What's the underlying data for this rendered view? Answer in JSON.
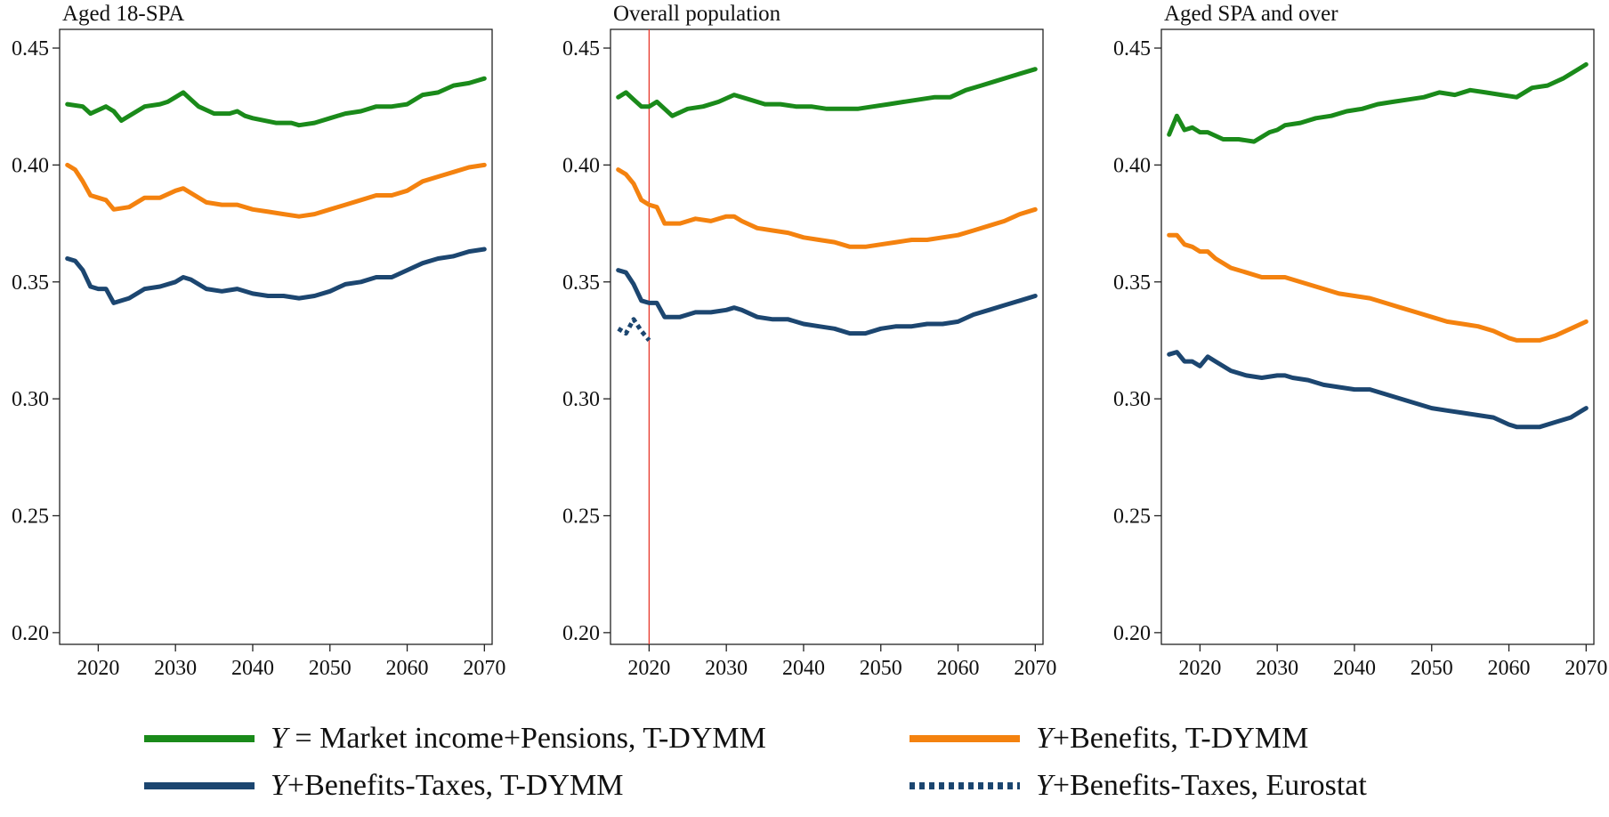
{
  "chart_data": [
    {
      "type": "line",
      "title": "Aged 18-SPA",
      "xlabel": "",
      "ylabel": "",
      "xlim": [
        2015,
        2071
      ],
      "ylim": [
        0.195,
        0.458
      ],
      "x_ticks": [
        "2020",
        "2030",
        "2040",
        "2050",
        "2060",
        "2070"
      ],
      "y_ticks": [
        "0.20",
        "0.25",
        "0.30",
        "0.35",
        "0.40",
        "0.45"
      ],
      "grid": false,
      "series": [
        {
          "name": "Y = Market income+Pensions, T-DYMM",
          "color": "#1a8a1a",
          "x": [
            2016,
            2018,
            2019,
            2021,
            2022,
            2023,
            2025,
            2026,
            2028,
            2029,
            2030,
            2031,
            2032,
            2033,
            2035,
            2037,
            2038,
            2039,
            2040,
            2043,
            2045,
            2046,
            2048,
            2050,
            2052,
            2054,
            2056,
            2058,
            2060,
            2062,
            2064,
            2066,
            2068,
            2070
          ],
          "values": [
            0.426,
            0.425,
            0.422,
            0.425,
            0.423,
            0.419,
            0.423,
            0.425,
            0.426,
            0.427,
            0.429,
            0.431,
            0.428,
            0.425,
            0.422,
            0.422,
            0.423,
            0.421,
            0.42,
            0.418,
            0.418,
            0.417,
            0.418,
            0.42,
            0.422,
            0.423,
            0.425,
            0.425,
            0.426,
            0.43,
            0.431,
            0.434,
            0.435,
            0.437
          ]
        },
        {
          "name": "Y+Benefits, T-DYMM",
          "color": "#f4820f",
          "x": [
            2016,
            2017,
            2018,
            2019,
            2020,
            2021,
            2022,
            2024,
            2026,
            2028,
            2030,
            2031,
            2032,
            2034,
            2036,
            2038,
            2040,
            2042,
            2044,
            2046,
            2048,
            2050,
            2052,
            2054,
            2056,
            2058,
            2060,
            2062,
            2064,
            2066,
            2068,
            2070
          ],
          "values": [
            0.4,
            0.398,
            0.393,
            0.387,
            0.386,
            0.385,
            0.381,
            0.382,
            0.386,
            0.386,
            0.389,
            0.39,
            0.388,
            0.384,
            0.383,
            0.383,
            0.381,
            0.38,
            0.379,
            0.378,
            0.379,
            0.381,
            0.383,
            0.385,
            0.387,
            0.387,
            0.389,
            0.393,
            0.395,
            0.397,
            0.399,
            0.4
          ]
        },
        {
          "name": "Y+Benefits-Taxes, T-DYMM",
          "color": "#1c4670",
          "x": [
            2016,
            2017,
            2018,
            2019,
            2020,
            2021,
            2022,
            2024,
            2026,
            2028,
            2030,
            2031,
            2032,
            2034,
            2036,
            2038,
            2040,
            2042,
            2044,
            2046,
            2048,
            2050,
            2052,
            2054,
            2056,
            2058,
            2060,
            2062,
            2064,
            2066,
            2068,
            2070
          ],
          "values": [
            0.36,
            0.359,
            0.355,
            0.348,
            0.347,
            0.347,
            0.341,
            0.343,
            0.347,
            0.348,
            0.35,
            0.352,
            0.351,
            0.347,
            0.346,
            0.347,
            0.345,
            0.344,
            0.344,
            0.343,
            0.344,
            0.346,
            0.349,
            0.35,
            0.352,
            0.352,
            0.355,
            0.358,
            0.36,
            0.361,
            0.363,
            0.364
          ]
        }
      ]
    },
    {
      "type": "line",
      "title": "Overall population",
      "xlabel": "",
      "ylabel": "",
      "xlim": [
        2015,
        2071
      ],
      "ylim": [
        0.195,
        0.458
      ],
      "x_ticks": [
        "2020",
        "2030",
        "2040",
        "2050",
        "2060",
        "2070"
      ],
      "y_ticks": [
        "0.20",
        "0.25",
        "0.30",
        "0.35",
        "0.40",
        "0.45"
      ],
      "grid": false,
      "vertical_line": {
        "x": 2020,
        "color": "#e8372c"
      },
      "series": [
        {
          "name": "Y = Market income+Pensions, T-DYMM",
          "color": "#1a8a1a",
          "x": [
            2016,
            2017,
            2018,
            2019,
            2020,
            2021,
            2022,
            2023,
            2025,
            2027,
            2029,
            2031,
            2033,
            2035,
            2037,
            2039,
            2041,
            2043,
            2045,
            2047,
            2049,
            2051,
            2053,
            2055,
            2057,
            2059,
            2061,
            2063,
            2065,
            2067,
            2070
          ],
          "values": [
            0.429,
            0.431,
            0.428,
            0.425,
            0.425,
            0.427,
            0.424,
            0.421,
            0.424,
            0.425,
            0.427,
            0.43,
            0.428,
            0.426,
            0.426,
            0.425,
            0.425,
            0.424,
            0.424,
            0.424,
            0.425,
            0.426,
            0.427,
            0.428,
            0.429,
            0.429,
            0.432,
            0.434,
            0.436,
            0.438,
            0.441
          ]
        },
        {
          "name": "Y+Benefits, T-DYMM",
          "color": "#f4820f",
          "x": [
            2016,
            2017,
            2018,
            2019,
            2020,
            2021,
            2022,
            2024,
            2026,
            2028,
            2030,
            2031,
            2032,
            2034,
            2036,
            2038,
            2040,
            2042,
            2044,
            2046,
            2048,
            2050,
            2052,
            2054,
            2056,
            2058,
            2060,
            2062,
            2064,
            2066,
            2068,
            2070
          ],
          "values": [
            0.398,
            0.396,
            0.392,
            0.385,
            0.383,
            0.382,
            0.375,
            0.375,
            0.377,
            0.376,
            0.378,
            0.378,
            0.376,
            0.373,
            0.372,
            0.371,
            0.369,
            0.368,
            0.367,
            0.365,
            0.365,
            0.366,
            0.367,
            0.368,
            0.368,
            0.369,
            0.37,
            0.372,
            0.374,
            0.376,
            0.379,
            0.381
          ]
        },
        {
          "name": "Y+Benefits-Taxes, T-DYMM",
          "color": "#1c4670",
          "x": [
            2016,
            2017,
            2018,
            2019,
            2020,
            2021,
            2022,
            2024,
            2026,
            2028,
            2030,
            2031,
            2032,
            2034,
            2036,
            2038,
            2040,
            2042,
            2044,
            2046,
            2048,
            2050,
            2052,
            2054,
            2056,
            2058,
            2060,
            2062,
            2064,
            2066,
            2068,
            2070
          ],
          "values": [
            0.355,
            0.354,
            0.349,
            0.342,
            0.341,
            0.341,
            0.335,
            0.335,
            0.337,
            0.337,
            0.338,
            0.339,
            0.338,
            0.335,
            0.334,
            0.334,
            0.332,
            0.331,
            0.33,
            0.328,
            0.328,
            0.33,
            0.331,
            0.331,
            0.332,
            0.332,
            0.333,
            0.336,
            0.338,
            0.34,
            0.342,
            0.344
          ]
        },
        {
          "name": "Y+Benefits-Taxes, Eurostat",
          "color": "#1c4670",
          "dashed": true,
          "x": [
            2016,
            2017,
            2018,
            2019,
            2020
          ],
          "values": [
            0.33,
            0.328,
            0.334,
            0.329,
            0.325
          ]
        }
      ]
    },
    {
      "type": "line",
      "title": "Aged SPA and over",
      "xlabel": "",
      "ylabel": "",
      "xlim": [
        2015,
        2071
      ],
      "ylim": [
        0.195,
        0.458
      ],
      "x_ticks": [
        "2020",
        "2030",
        "2040",
        "2050",
        "2060",
        "2070"
      ],
      "y_ticks": [
        "0.20",
        "0.25",
        "0.30",
        "0.35",
        "0.40",
        "0.45"
      ],
      "grid": false,
      "series": [
        {
          "name": "Y = Market income+Pensions, T-DYMM",
          "color": "#1a8a1a",
          "x": [
            2016,
            2017,
            2018,
            2019,
            2020,
            2021,
            2023,
            2025,
            2027,
            2029,
            2030,
            2031,
            2033,
            2035,
            2037,
            2039,
            2041,
            2043,
            2045,
            2047,
            2049,
            2051,
            2053,
            2055,
            2057,
            2059,
            2061,
            2063,
            2065,
            2067,
            2069,
            2070
          ],
          "values": [
            0.413,
            0.421,
            0.415,
            0.416,
            0.414,
            0.414,
            0.411,
            0.411,
            0.41,
            0.414,
            0.415,
            0.417,
            0.418,
            0.42,
            0.421,
            0.423,
            0.424,
            0.426,
            0.427,
            0.428,
            0.429,
            0.431,
            0.43,
            0.432,
            0.431,
            0.43,
            0.429,
            0.433,
            0.434,
            0.437,
            0.441,
            0.443
          ]
        },
        {
          "name": "Y+Benefits, T-DYMM",
          "color": "#f4820f",
          "x": [
            2016,
            2017,
            2018,
            2019,
            2020,
            2021,
            2022,
            2024,
            2026,
            2028,
            2030,
            2031,
            2032,
            2034,
            2036,
            2038,
            2040,
            2042,
            2044,
            2046,
            2048,
            2050,
            2052,
            2054,
            2056,
            2058,
            2060,
            2061,
            2062,
            2064,
            2066,
            2068,
            2070
          ],
          "values": [
            0.37,
            0.37,
            0.366,
            0.365,
            0.363,
            0.363,
            0.36,
            0.356,
            0.354,
            0.352,
            0.352,
            0.352,
            0.351,
            0.349,
            0.347,
            0.345,
            0.344,
            0.343,
            0.341,
            0.339,
            0.337,
            0.335,
            0.333,
            0.332,
            0.331,
            0.329,
            0.326,
            0.325,
            0.325,
            0.325,
            0.327,
            0.33,
            0.333
          ]
        },
        {
          "name": "Y+Benefits-Taxes, T-DYMM",
          "color": "#1c4670",
          "x": [
            2016,
            2017,
            2018,
            2019,
            2020,
            2021,
            2022,
            2024,
            2026,
            2028,
            2030,
            2031,
            2032,
            2034,
            2036,
            2038,
            2040,
            2042,
            2044,
            2046,
            2048,
            2050,
            2052,
            2054,
            2056,
            2058,
            2060,
            2061,
            2062,
            2064,
            2066,
            2068,
            2070
          ],
          "values": [
            0.319,
            0.32,
            0.316,
            0.316,
            0.314,
            0.318,
            0.316,
            0.312,
            0.31,
            0.309,
            0.31,
            0.31,
            0.309,
            0.308,
            0.306,
            0.305,
            0.304,
            0.304,
            0.302,
            0.3,
            0.298,
            0.296,
            0.295,
            0.294,
            0.293,
            0.292,
            0.289,
            0.288,
            0.288,
            0.288,
            0.29,
            0.292,
            0.296
          ]
        }
      ]
    }
  ],
  "legend": {
    "placement": "bottom",
    "items": [
      {
        "prefix": "Y",
        "label": " = Market income+Pensions, T-DYMM",
        "color": "#1a8a1a",
        "dashed": false
      },
      {
        "prefix": "Y",
        "label": "+Benefits, T-DYMM",
        "color": "#f4820f",
        "dashed": false
      },
      {
        "prefix": "Y",
        "label": "+Benefits-Taxes, T-DYMM",
        "color": "#1c4670",
        "dashed": false
      },
      {
        "prefix": "Y",
        "label": "+Benefits-Taxes, Eurostat",
        "color": "#1c4670",
        "dashed": true
      }
    ]
  }
}
